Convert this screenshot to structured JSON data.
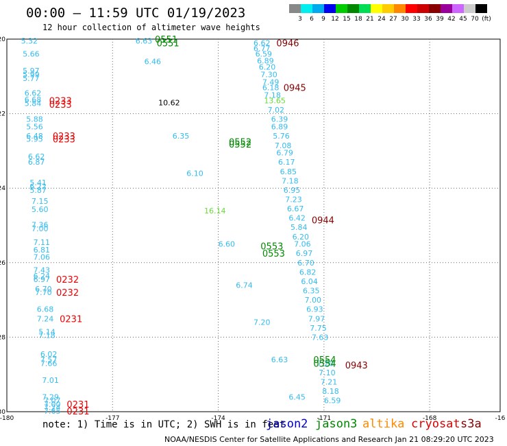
{
  "header": {
    "title": "00:00 – 11:59 UTC 01/19/2023",
    "subtitle": "12 hour collection of altimeter wave heights"
  },
  "footer": {
    "note": "note: 1) Time is in UTC; 2) SWH is in feet",
    "credit": "NOAA/NESDIS Center for Satellite Applications and Research   Jan 21 08:29:20 UTC 2023",
    "satellites": [
      {
        "name": "jason2",
        "color": "#0000cc"
      },
      {
        "name": "jason3",
        "color": "#008800"
      },
      {
        "name": "altika",
        "color": "#ff8800"
      },
      {
        "name": "cryosat",
        "color": "#dd0000"
      },
      {
        "name": "s3a",
        "color": "#880000"
      }
    ]
  },
  "colorbar": {
    "colors": [
      "#888888",
      "#00eeee",
      "#00aaee",
      "#0000ee",
      "#00cc00",
      "#008800",
      "#00dd55",
      "#ffff00",
      "#ffcc00",
      "#ff8800",
      "#ff0000",
      "#cc0000",
      "#880000",
      "#990099",
      "#cc66ff",
      "#cccccc",
      "#000000"
    ],
    "labels": [
      "3",
      "6",
      "9",
      "12",
      "15",
      "18",
      "21",
      "24",
      "27",
      "30",
      "33",
      "36",
      "39",
      "42",
      "45",
      "70",
      "(ft)"
    ]
  },
  "chart_data": {
    "type": "scatter",
    "xlim": [
      -180,
      -166
    ],
    "ylim": [
      -30,
      -20
    ],
    "xticks": [
      "-180",
      "-177",
      "-174",
      "-171",
      "-168",
      "-16"
    ],
    "yticks": [
      "-20",
      "-22",
      "-24",
      "-26",
      "-28",
      "-30"
    ],
    "grid": true,
    "tracks": [
      {
        "name": "track_west",
        "points": [
          {
            "x": -179.6,
            "y": -20.05,
            "value": "5.32",
            "color": "#33bbee"
          },
          {
            "x": -179.55,
            "y": -20.4,
            "value": "5.66",
            "color": "#33bbee"
          },
          {
            "x": -179.55,
            "y": -20.85,
            "value": "5.97",
            "color": "#33bbee"
          },
          {
            "x": -179.55,
            "y": -20.95,
            "value": "5.99",
            "color": "#33bbee"
          },
          {
            "x": -179.55,
            "y": -21.05,
            "value": "5.77",
            "color": "#33bbee"
          },
          {
            "x": -179.5,
            "y": -21.45,
            "value": "6.62",
            "color": "#33bbee"
          },
          {
            "x": -179.5,
            "y": -21.62,
            "value": "6.68",
            "color": "#33bbee"
          },
          {
            "x": -179.5,
            "y": -21.72,
            "value": "5.84",
            "color": "#33bbee"
          },
          {
            "x": -179.45,
            "y": -22.15,
            "value": "5.88",
            "color": "#33bbee"
          },
          {
            "x": -179.45,
            "y": -22.35,
            "value": "5.56",
            "color": "#33bbee"
          },
          {
            "x": -179.45,
            "y": -22.6,
            "value": "6.48",
            "color": "#33bbee"
          },
          {
            "x": -179.45,
            "y": -22.68,
            "value": "5.95",
            "color": "#33bbee"
          },
          {
            "x": -179.4,
            "y": -23.15,
            "value": "6.62",
            "color": "#33bbee"
          },
          {
            "x": -179.4,
            "y": -23.3,
            "value": "6.87",
            "color": "#33bbee"
          },
          {
            "x": -179.35,
            "y": -23.85,
            "value": "5.41",
            "color": "#33bbee"
          },
          {
            "x": -179.35,
            "y": -23.95,
            "value": "6.22",
            "color": "#33bbee"
          },
          {
            "x": -179.35,
            "y": -24.05,
            "value": "5.87",
            "color": "#33bbee"
          },
          {
            "x": -179.3,
            "y": -24.35,
            "value": "7.15",
            "color": "#33bbee"
          },
          {
            "x": -179.3,
            "y": -24.57,
            "value": "5.60",
            "color": "#33bbee"
          },
          {
            "x": -179.3,
            "y": -24.98,
            "value": "7.36",
            "color": "#33bbee"
          },
          {
            "x": -179.3,
            "y": -25.08,
            "value": "7.00",
            "color": "#33bbee"
          },
          {
            "x": -179.25,
            "y": -25.45,
            "value": "7.11",
            "color": "#33bbee"
          },
          {
            "x": -179.25,
            "y": -25.65,
            "value": "6.81",
            "color": "#33bbee"
          },
          {
            "x": -179.25,
            "y": -25.85,
            "value": "7.06",
            "color": "#33bbee"
          },
          {
            "x": -179.25,
            "y": -26.2,
            "value": "7.43",
            "color": "#33bbee"
          },
          {
            "x": -179.25,
            "y": -26.35,
            "value": "6.24",
            "color": "#33bbee"
          },
          {
            "x": -179.25,
            "y": -26.45,
            "value": "6.97",
            "color": "#33bbee"
          },
          {
            "x": -179.2,
            "y": -26.7,
            "value": "6.70",
            "color": "#33bbee"
          },
          {
            "x": -179.2,
            "y": -26.8,
            "value": "7.70",
            "color": "#33bbee"
          },
          {
            "x": -179.15,
            "y": -27.25,
            "value": "6.68",
            "color": "#33bbee"
          },
          {
            "x": -179.15,
            "y": -27.5,
            "value": "7.24",
            "color": "#33bbee"
          },
          {
            "x": -179.1,
            "y": -27.85,
            "value": "5.14",
            "color": "#33bbee"
          },
          {
            "x": -179.1,
            "y": -27.95,
            "value": "7.18",
            "color": "#33bbee"
          },
          {
            "x": -179.05,
            "y": -28.45,
            "value": "6.02",
            "color": "#33bbee"
          },
          {
            "x": -179.05,
            "y": -28.6,
            "value": "7.57",
            "color": "#33bbee"
          },
          {
            "x": -179.05,
            "y": -28.7,
            "value": "7.66",
            "color": "#33bbee"
          },
          {
            "x": -179.0,
            "y": -29.15,
            "value": "7.01",
            "color": "#33bbee"
          },
          {
            "x": -179.0,
            "y": -29.6,
            "value": "7.29",
            "color": "#33bbee"
          },
          {
            "x": -178.95,
            "y": -29.7,
            "value": "7.07",
            "color": "#33bbee"
          },
          {
            "x": -178.95,
            "y": -29.8,
            "value": "7.00",
            "color": "#33bbee"
          },
          {
            "x": -178.95,
            "y": -29.88,
            "value": "7.24",
            "color": "#33bbee"
          },
          {
            "x": -178.95,
            "y": -29.98,
            "value": "7.65",
            "color": "#33bbee"
          }
        ]
      },
      {
        "name": "track_east",
        "points": [
          {
            "x": -173.0,
            "y": -20.1,
            "value": "6.62",
            "color": "#33bbee"
          },
          {
            "x": -173.0,
            "y": -20.25,
            "value": "6.77",
            "color": "#33bbee"
          },
          {
            "x": -172.95,
            "y": -20.4,
            "value": "6.59",
            "color": "#33bbee"
          },
          {
            "x": -172.9,
            "y": -20.58,
            "value": "6.89",
            "color": "#33bbee"
          },
          {
            "x": -172.85,
            "y": -20.75,
            "value": "6.20",
            "color": "#33bbee"
          },
          {
            "x": -172.8,
            "y": -20.95,
            "value": "7.30",
            "color": "#33bbee"
          },
          {
            "x": -172.75,
            "y": -21.15,
            "value": "7.49",
            "color": "#33bbee"
          },
          {
            "x": -172.75,
            "y": -21.3,
            "value": "6.18",
            "color": "#33bbee"
          },
          {
            "x": -172.7,
            "y": -21.5,
            "value": "7.18",
            "color": "#33bbee"
          },
          {
            "x": -172.7,
            "y": -21.65,
            "value": "13.65",
            "color": "#66dd33"
          },
          {
            "x": -172.6,
            "y": -21.9,
            "value": "7.02",
            "color": "#33bbee"
          },
          {
            "x": -172.5,
            "y": -22.15,
            "value": "6.39",
            "color": "#33bbee"
          },
          {
            "x": -172.5,
            "y": -22.35,
            "value": "6.89",
            "color": "#33bbee"
          },
          {
            "x": -172.45,
            "y": -22.6,
            "value": "5.76",
            "color": "#33bbee"
          },
          {
            "x": -172.4,
            "y": -22.85,
            "value": "7.08",
            "color": "#33bbee"
          },
          {
            "x": -172.35,
            "y": -23.05,
            "value": "6.79",
            "color": "#33bbee"
          },
          {
            "x": -172.3,
            "y": -23.3,
            "value": "6.17",
            "color": "#33bbee"
          },
          {
            "x": -172.25,
            "y": -23.55,
            "value": "6.85",
            "color": "#33bbee"
          },
          {
            "x": -172.2,
            "y": -23.8,
            "value": "7.18",
            "color": "#33bbee"
          },
          {
            "x": -172.15,
            "y": -24.05,
            "value": "6.95",
            "color": "#33bbee"
          },
          {
            "x": -172.1,
            "y": -24.3,
            "value": "7.23",
            "color": "#33bbee"
          },
          {
            "x": -172.05,
            "y": -24.55,
            "value": "6.67",
            "color": "#33bbee"
          },
          {
            "x": -172.0,
            "y": -24.8,
            "value": "6.42",
            "color": "#33bbee"
          },
          {
            "x": -171.95,
            "y": -25.05,
            "value": "5.84",
            "color": "#33bbee"
          },
          {
            "x": -171.9,
            "y": -25.3,
            "value": "6.20",
            "color": "#33bbee"
          },
          {
            "x": -171.85,
            "y": -25.5,
            "value": "7.06",
            "color": "#33bbee"
          },
          {
            "x": -171.8,
            "y": -25.75,
            "value": "6.97",
            "color": "#33bbee"
          },
          {
            "x": -171.75,
            "y": -26.0,
            "value": "6.70",
            "color": "#33bbee"
          },
          {
            "x": -171.7,
            "y": -26.25,
            "value": "6.82",
            "color": "#33bbee"
          },
          {
            "x": -171.65,
            "y": -26.5,
            "value": "6.04",
            "color": "#33bbee"
          },
          {
            "x": -171.6,
            "y": -26.75,
            "value": "6.35",
            "color": "#33bbee"
          },
          {
            "x": -171.55,
            "y": -27.0,
            "value": "7.00",
            "color": "#33bbee"
          },
          {
            "x": -171.5,
            "y": -27.25,
            "value": "6.93",
            "color": "#33bbee"
          },
          {
            "x": -171.45,
            "y": -27.5,
            "value": "7.97",
            "color": "#33bbee"
          },
          {
            "x": -171.4,
            "y": -27.75,
            "value": "7.75",
            "color": "#33bbee"
          },
          {
            "x": -171.35,
            "y": -28.0,
            "value": "7.63",
            "color": "#33bbee"
          },
          {
            "x": -171.2,
            "y": -28.7,
            "value": "7.20",
            "color": "#33bbee"
          },
          {
            "x": -171.15,
            "y": -28.95,
            "value": "7.10",
            "color": "#33bbee"
          },
          {
            "x": -171.1,
            "y": -29.2,
            "value": "7.21",
            "color": "#33bbee"
          },
          {
            "x": -171.05,
            "y": -29.45,
            "value": "8.18",
            "color": "#33bbee"
          },
          {
            "x": -171.0,
            "y": -29.7,
            "value": "6.59",
            "color": "#33bbee"
          }
        ]
      },
      {
        "name": "track_central",
        "points": [
          {
            "x": -176.35,
            "y": -20.05,
            "value": "6.63",
            "color": "#33bbee"
          },
          {
            "x": -176.1,
            "y": -20.6,
            "value": "6.46",
            "color": "#33bbee"
          },
          {
            "x": -175.7,
            "y": -21.7,
            "value": "10.62",
            "color": "#000000"
          },
          {
            "x": -175.3,
            "y": -22.6,
            "value": "6.35",
            "color": "#33bbee"
          },
          {
            "x": -174.9,
            "y": -23.6,
            "value": "6.10",
            "color": "#33bbee"
          },
          {
            "x": -174.4,
            "y": -24.6,
            "value": "16.14",
            "color": "#66dd33"
          },
          {
            "x": -174.0,
            "y": -25.5,
            "value": "6.60",
            "color": "#33bbee"
          },
          {
            "x": -173.5,
            "y": -26.6,
            "value": "6.74",
            "color": "#33bbee"
          },
          {
            "x": -173.0,
            "y": -27.6,
            "value": "7.20",
            "color": "#33bbee"
          },
          {
            "x": -172.5,
            "y": -28.6,
            "value": "6.63",
            "color": "#33bbee"
          },
          {
            "x": -172.0,
            "y": -29.6,
            "value": "6.45",
            "color": "#33bbee"
          }
        ]
      }
    ],
    "pass_times": [
      {
        "x": -178.8,
        "y": -21.65,
        "label": "0233",
        "satellite": "cryosat",
        "color": "#ee0000"
      },
      {
        "x": -178.8,
        "y": -21.75,
        "label": "0233",
        "satellite": "cryosat",
        "color": "#ee0000"
      },
      {
        "x": -178.7,
        "y": -22.6,
        "label": "0233",
        "satellite": "cryosat",
        "color": "#ee0000"
      },
      {
        "x": -178.7,
        "y": -22.68,
        "label": "0233",
        "satellite": "cryosat",
        "color": "#ee0000"
      },
      {
        "x": -178.6,
        "y": -26.45,
        "label": "0232",
        "satellite": "cryosat",
        "color": "#ee0000"
      },
      {
        "x": -178.6,
        "y": -26.8,
        "label": "0232",
        "satellite": "cryosat",
        "color": "#ee0000"
      },
      {
        "x": -178.5,
        "y": -27.5,
        "label": "0231",
        "satellite": "cryosat",
        "color": "#ee0000"
      },
      {
        "x": -178.3,
        "y": -29.8,
        "label": "0231",
        "satellite": "cryosat",
        "color": "#ee0000"
      },
      {
        "x": -178.3,
        "y": -29.98,
        "label": "0231",
        "satellite": "cryosat",
        "color": "#ee0000"
      },
      {
        "x": -175.8,
        "y": -20.0,
        "label": "0551",
        "satellite": "jason3",
        "color": "#008800"
      },
      {
        "x": -175.75,
        "y": -20.1,
        "label": "0551",
        "satellite": "jason3",
        "color": "#008800"
      },
      {
        "x": -173.7,
        "y": -22.75,
        "label": "0552",
        "satellite": "jason3",
        "color": "#008800"
      },
      {
        "x": -173.7,
        "y": -22.82,
        "label": "0552",
        "satellite": "jason3",
        "color": "#008800"
      },
      {
        "x": -172.8,
        "y": -25.55,
        "label": "0553",
        "satellite": "jason3",
        "color": "#008800"
      },
      {
        "x": -172.75,
        "y": -25.75,
        "label": "0553",
        "satellite": "jason3",
        "color": "#008800"
      },
      {
        "x": -171.3,
        "y": -28.6,
        "label": "0554",
        "satellite": "jason3",
        "color": "#008800"
      },
      {
        "x": -171.3,
        "y": -28.7,
        "label": "0554",
        "satellite": "jason3",
        "color": "#008800"
      },
      {
        "x": -172.35,
        "y": -20.1,
        "label": "0946",
        "satellite": "s3a",
        "color": "#880000"
      },
      {
        "x": -172.15,
        "y": -21.3,
        "label": "0945",
        "satellite": "s3a",
        "color": "#880000"
      },
      {
        "x": -171.35,
        "y": -24.85,
        "label": "0944",
        "satellite": "s3a",
        "color": "#880000"
      },
      {
        "x": -170.4,
        "y": -28.75,
        "label": "0943",
        "satellite": "s3a",
        "color": "#880000"
      }
    ]
  }
}
